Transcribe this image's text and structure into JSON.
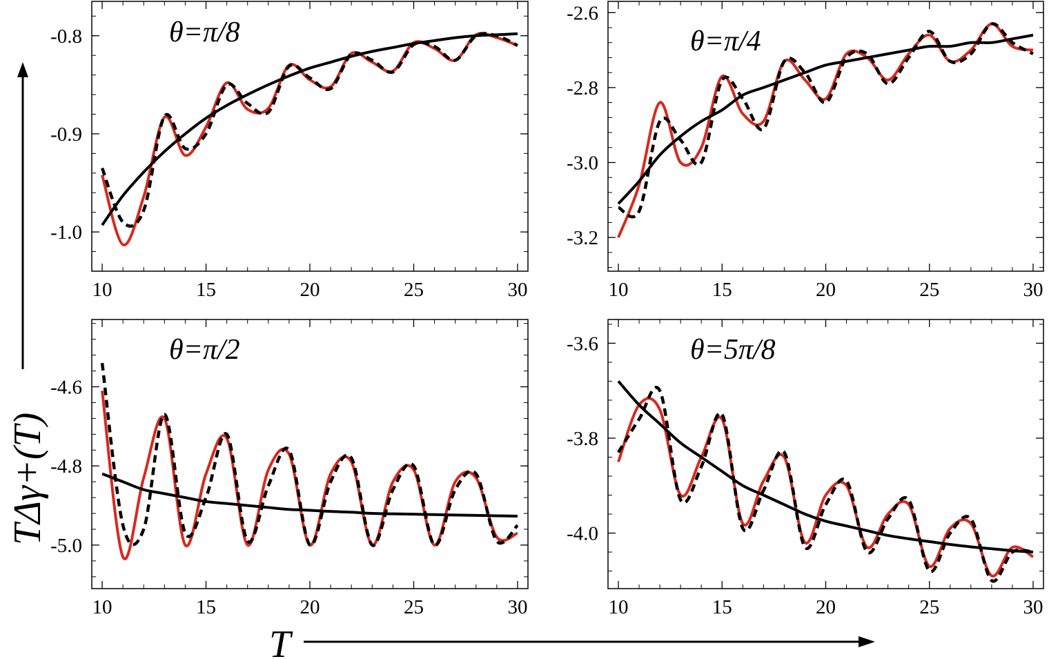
{
  "axis_labels": {
    "x": "T",
    "y": "TΔγ+(T)"
  },
  "colors": {
    "red_series": "#d62a1e",
    "black_series": "#000000",
    "frame": "#000000"
  },
  "chart_data": [
    {
      "type": "line",
      "title": "θ=π/8",
      "xlim": [
        9.5,
        30.5
      ],
      "ylim": [
        -1.04,
        -0.765
      ],
      "xticks": [
        10,
        15,
        20,
        25,
        30
      ],
      "xtick_labels": [
        "10",
        "15",
        "20",
        "25",
        "30"
      ],
      "yticks": [
        -1.0,
        -0.9,
        -0.8
      ],
      "ytick_labels": [
        "-1.0",
        "-0.9",
        "-0.8"
      ],
      "series": [
        {
          "style": "solid-red",
          "x": [
            10,
            11,
            12,
            13,
            14,
            15,
            16,
            17,
            18,
            19,
            20,
            21,
            22,
            23,
            24,
            25,
            26,
            27,
            28,
            29,
            30
          ],
          "y": [
            -0.942,
            -1.013,
            -0.964,
            -0.883,
            -0.922,
            -0.893,
            -0.848,
            -0.875,
            -0.874,
            -0.83,
            -0.845,
            -0.852,
            -0.818,
            -0.827,
            -0.836,
            -0.807,
            -0.813,
            -0.825,
            -0.799,
            -0.802,
            -0.81
          ]
        },
        {
          "style": "dashed-black",
          "x": [
            10,
            11,
            12,
            13,
            14,
            15,
            16,
            17,
            18,
            19,
            20,
            21,
            22,
            23,
            24,
            25,
            26,
            27,
            28,
            29,
            30
          ],
          "y": [
            -0.935,
            -0.99,
            -0.978,
            -0.882,
            -0.915,
            -0.9,
            -0.85,
            -0.869,
            -0.878,
            -0.831,
            -0.843,
            -0.854,
            -0.819,
            -0.825,
            -0.837,
            -0.809,
            -0.811,
            -0.825,
            -0.8,
            -0.8,
            -0.81
          ]
        },
        {
          "style": "solid-black",
          "x": [
            10,
            11,
            12,
            13,
            14,
            15,
            16,
            17,
            18,
            19,
            20,
            21,
            22,
            23,
            24,
            25,
            26,
            27,
            28,
            29,
            30
          ],
          "y": [
            -0.993,
            -0.963,
            -0.939,
            -0.918,
            -0.9,
            -0.884,
            -0.871,
            -0.86,
            -0.85,
            -0.841,
            -0.833,
            -0.827,
            -0.821,
            -0.816,
            -0.812,
            -0.808,
            -0.805,
            -0.802,
            -0.8,
            -0.799,
            -0.798
          ]
        }
      ]
    },
    {
      "type": "line",
      "title": "θ=π/4",
      "xlim": [
        9.5,
        30.5
      ],
      "ylim": [
        -3.29,
        -2.57
      ],
      "xticks": [
        10,
        15,
        20,
        25,
        30
      ],
      "xtick_labels": [
        "10",
        "15",
        "20",
        "25",
        "30"
      ],
      "yticks": [
        -3.2,
        -3.0,
        -2.8,
        -2.6
      ],
      "ytick_labels": [
        "-3.2",
        "-3.0",
        "-2.8",
        "-2.6"
      ],
      "series": [
        {
          "style": "solid-red",
          "x": [
            10,
            11,
            12,
            13,
            14,
            15,
            16,
            17,
            18,
            19,
            20,
            21,
            22,
            23,
            24,
            25,
            26,
            27,
            28,
            29,
            30
          ],
          "y": [
            -3.2,
            -3.06,
            -2.84,
            -3.0,
            -2.96,
            -2.77,
            -2.87,
            -2.89,
            -2.73,
            -2.78,
            -2.83,
            -2.71,
            -2.72,
            -2.78,
            -2.71,
            -2.66,
            -2.73,
            -2.7,
            -2.63,
            -2.69,
            -2.7
          ]
        },
        {
          "style": "dashed-black",
          "x": [
            10,
            11,
            12,
            13,
            14,
            15,
            16,
            17,
            18,
            19,
            20,
            21,
            22,
            23,
            24,
            25,
            26,
            27,
            28,
            29,
            30
          ],
          "y": [
            -3.12,
            -3.13,
            -2.89,
            -2.94,
            -3.0,
            -2.78,
            -2.83,
            -2.91,
            -2.73,
            -2.76,
            -2.84,
            -2.72,
            -2.71,
            -2.79,
            -2.72,
            -2.65,
            -2.73,
            -2.71,
            -2.63,
            -2.68,
            -2.71
          ]
        },
        {
          "style": "solid-black",
          "x": [
            10,
            11,
            12,
            13,
            14,
            15,
            16,
            17,
            18,
            19,
            20,
            21,
            22,
            23,
            24,
            25,
            26,
            27,
            28,
            29,
            30
          ],
          "y": [
            -3.11,
            -3.05,
            -2.98,
            -2.93,
            -2.89,
            -2.86,
            -2.82,
            -2.8,
            -2.78,
            -2.76,
            -2.74,
            -2.73,
            -2.72,
            -2.71,
            -2.7,
            -2.69,
            -2.69,
            -2.68,
            -2.68,
            -2.67,
            -2.66
          ]
        }
      ]
    },
    {
      "type": "line",
      "title": "θ=π/2",
      "xlim": [
        9.5,
        30.5
      ],
      "ylim": [
        -5.11,
        -4.43
      ],
      "xticks": [
        10,
        15,
        20,
        25,
        30
      ],
      "xtick_labels": [
        "10",
        "15",
        "20",
        "25",
        "30"
      ],
      "yticks": [
        -5.0,
        -4.8,
        -4.6
      ],
      "ytick_labels": [
        "-5.0",
        "-4.8",
        "-4.6"
      ],
      "series": [
        {
          "style": "solid-red",
          "x": [
            10,
            11,
            12,
            13,
            14,
            15,
            16,
            17,
            18,
            19,
            20,
            21,
            22,
            23,
            24,
            25,
            26,
            27,
            28,
            29,
            30
          ],
          "y": [
            -4.61,
            -5.03,
            -4.83,
            -4.68,
            -5.0,
            -4.82,
            -4.73,
            -5.0,
            -4.81,
            -4.77,
            -5.0,
            -4.82,
            -4.79,
            -5.0,
            -4.84,
            -4.81,
            -5.0,
            -4.84,
            -4.83,
            -4.98,
            -4.97
          ]
        },
        {
          "style": "dashed-black",
          "x": [
            10,
            11,
            12,
            13,
            14,
            15,
            16,
            17,
            18,
            19,
            20,
            21,
            22,
            23,
            24,
            25,
            26,
            27,
            28,
            29,
            30
          ],
          "y": [
            -4.54,
            -4.95,
            -4.96,
            -4.67,
            -4.97,
            -4.88,
            -4.72,
            -4.99,
            -4.85,
            -4.76,
            -5.0,
            -4.84,
            -4.78,
            -5.0,
            -4.86,
            -4.8,
            -5.0,
            -4.86,
            -4.82,
            -4.99,
            -4.95
          ]
        },
        {
          "style": "solid-black",
          "x": [
            10,
            11,
            12,
            13,
            14,
            15,
            16,
            17,
            18,
            19,
            20,
            21,
            22,
            23,
            24,
            25,
            26,
            27,
            28,
            29,
            30
          ],
          "y": [
            -4.82,
            -4.84,
            -4.86,
            -4.87,
            -4.88,
            -4.89,
            -4.895,
            -4.9,
            -4.905,
            -4.91,
            -4.912,
            -4.915,
            -4.917,
            -4.92,
            -4.921,
            -4.922,
            -4.923,
            -4.924,
            -4.925,
            -4.926,
            -4.927
          ]
        }
      ]
    },
    {
      "type": "line",
      "title": "θ=5π/8",
      "xlim": [
        9.5,
        30.5
      ],
      "ylim": [
        -4.117,
        -3.55
      ],
      "xticks": [
        10,
        15,
        20,
        25,
        30
      ],
      "xtick_labels": [
        "10",
        "15",
        "20",
        "25",
        "30"
      ],
      "yticks": [
        -4.0,
        -3.8,
        -3.6
      ],
      "ytick_labels": [
        "-4.0",
        "-3.8",
        "-3.6"
      ],
      "series": [
        {
          "style": "solid-red",
          "x": [
            10,
            11,
            12,
            13,
            14,
            15,
            16,
            17,
            18,
            19,
            20,
            21,
            22,
            23,
            24,
            25,
            26,
            27,
            28,
            29,
            30
          ],
          "y": [
            -3.85,
            -3.73,
            -3.74,
            -3.92,
            -3.84,
            -3.76,
            -3.98,
            -3.89,
            -3.84,
            -4.02,
            -3.92,
            -3.9,
            -4.03,
            -3.96,
            -3.94,
            -4.07,
            -3.99,
            -3.98,
            -4.09,
            -4.03,
            -4.05
          ]
        },
        {
          "style": "dashed-black",
          "x": [
            10,
            11,
            12,
            13,
            14,
            15,
            16,
            17,
            18,
            19,
            20,
            21,
            22,
            23,
            24,
            25,
            26,
            27,
            28,
            29,
            30
          ],
          "y": [
            -3.83,
            -3.76,
            -3.7,
            -3.93,
            -3.86,
            -3.75,
            -3.99,
            -3.91,
            -3.83,
            -4.03,
            -3.94,
            -3.89,
            -4.04,
            -3.97,
            -3.93,
            -4.08,
            -4.0,
            -3.97,
            -4.1,
            -4.04,
            -4.04
          ]
        },
        {
          "style": "solid-black",
          "x": [
            10,
            11,
            12,
            13,
            14,
            15,
            16,
            17,
            18,
            19,
            20,
            21,
            22,
            23,
            24,
            25,
            26,
            27,
            28,
            29,
            30
          ],
          "y": [
            -3.68,
            -3.73,
            -3.77,
            -3.81,
            -3.84,
            -3.87,
            -3.9,
            -3.92,
            -3.94,
            -3.96,
            -3.975,
            -3.985,
            -3.995,
            -4.005,
            -4.012,
            -4.018,
            -4.024,
            -4.029,
            -4.033,
            -4.037,
            -4.04
          ]
        }
      ]
    }
  ]
}
